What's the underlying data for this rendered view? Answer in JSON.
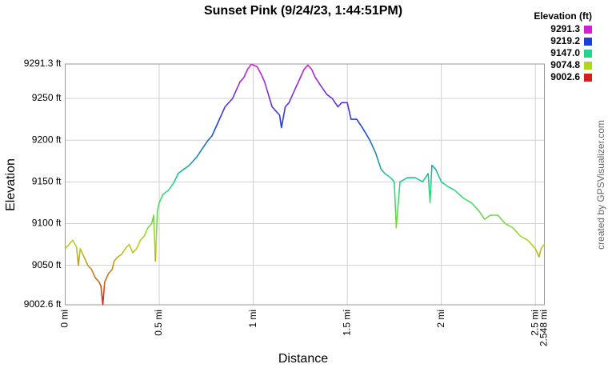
{
  "chart_data": {
    "type": "line",
    "title": "Sunset Pink (9/24/23, 1:44:51PM)",
    "x_label": "Distance",
    "y_label": "Elevation",
    "credit": "created by GPSVisualizer.com",
    "grid": true,
    "xlim": [
      0,
      2.548
    ],
    "ylim": [
      9002.6,
      9291.3
    ],
    "xticks": [
      {
        "value": 0,
        "label": "0 mi"
      },
      {
        "value": 0.5,
        "label": "0.5 mi"
      },
      {
        "value": 1,
        "label": "1 mi"
      },
      {
        "value": 1.5,
        "label": "1.5 mi"
      },
      {
        "value": 2,
        "label": "2 mi"
      },
      {
        "value": 2.5,
        "label": "2.5 mi"
      },
      {
        "value": 2.548,
        "label": "2.548 mi"
      }
    ],
    "yticks": [
      {
        "value": 9002.6,
        "label": "9002.6 ft"
      },
      {
        "value": 9050,
        "label": "9050 ft"
      },
      {
        "value": 9100,
        "label": "9100 ft"
      },
      {
        "value": 9150,
        "label": "9150 ft"
      },
      {
        "value": 9200,
        "label": "9200 ft"
      },
      {
        "value": 9250,
        "label": "9250 ft"
      },
      {
        "value": 9291.3,
        "label": "9291.3 ft"
      }
    ],
    "color_scale": {
      "title": "Elevation (ft)",
      "values": [
        9291.3,
        9219.2,
        9147,
        9074.8,
        9002.6
      ],
      "value_labels": [
        "9291.3",
        "9219.2",
        "9147.0",
        "9074.8",
        "9002.6"
      ],
      "colors": [
        "#d21fd2",
        "#1b3fd6",
        "#1fd68c",
        "#b4d619",
        "#d61c1c"
      ]
    },
    "x": [
      0,
      0.02,
      0.04,
      0.06,
      0.07,
      0.08,
      0.1,
      0.12,
      0.14,
      0.16,
      0.18,
      0.19,
      0.2,
      0.21,
      0.23,
      0.25,
      0.26,
      0.28,
      0.3,
      0.32,
      0.34,
      0.36,
      0.38,
      0.4,
      0.42,
      0.44,
      0.46,
      0.47,
      0.48,
      0.49,
      0.5,
      0.52,
      0.55,
      0.58,
      0.6,
      0.63,
      0.66,
      0.68,
      0.7,
      0.73,
      0.76,
      0.78,
      0.8,
      0.82,
      0.85,
      0.87,
      0.89,
      0.91,
      0.93,
      0.95,
      0.97,
      0.99,
      1.02,
      1.04,
      1.06,
      1.08,
      1.1,
      1.12,
      1.14,
      1.15,
      1.17,
      1.19,
      1.22,
      1.25,
      1.27,
      1.29,
      1.31,
      1.33,
      1.36,
      1.39,
      1.42,
      1.45,
      1.47,
      1.5,
      1.52,
      1.55,
      1.58,
      1.62,
      1.65,
      1.68,
      1.7,
      1.73,
      1.75,
      1.76,
      1.78,
      1.82,
      1.86,
      1.9,
      1.93,
      1.94,
      1.95,
      1.97,
      2,
      2.03,
      2.07,
      2.12,
      2.16,
      2.2,
      2.23,
      2.26,
      2.3,
      2.34,
      2.38,
      2.42,
      2.46,
      2.5,
      2.52,
      2.53,
      2.548
    ],
    "values": [
      9070,
      9075,
      9080,
      9072,
      9050,
      9070,
      9060,
      9050,
      9045,
      9035,
      9030,
      9025,
      9003,
      9030,
      9040,
      9045,
      9055,
      9060,
      9063,
      9070,
      9075,
      9065,
      9070,
      9080,
      9085,
      9095,
      9100,
      9110,
      9055,
      9115,
      9125,
      9135,
      9140,
      9150,
      9160,
      9165,
      9170,
      9175,
      9180,
      9190,
      9200,
      9205,
      9215,
      9225,
      9240,
      9245,
      9250,
      9260,
      9270,
      9275,
      9285,
      9291,
      9288,
      9280,
      9270,
      9255,
      9240,
      9235,
      9230,
      9215,
      9240,
      9245,
      9260,
      9275,
      9285,
      9290,
      9285,
      9275,
      9265,
      9255,
      9250,
      9240,
      9245,
      9245,
      9225,
      9225,
      9215,
      9200,
      9185,
      9165,
      9160,
      9155,
      9150,
      9095,
      9150,
      9155,
      9155,
      9150,
      9160,
      9125,
      9170,
      9165,
      9150,
      9145,
      9140,
      9130,
      9125,
      9115,
      9105,
      9110,
      9110,
      9100,
      9095,
      9085,
      9080,
      9070,
      9060,
      9070,
      9075
    ]
  }
}
